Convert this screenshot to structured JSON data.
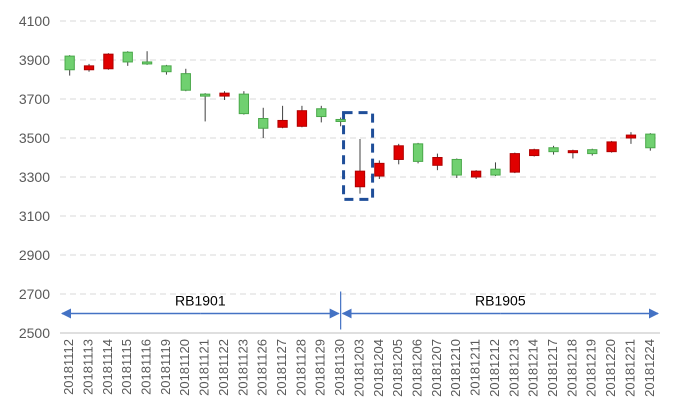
{
  "colors": {
    "up": "#70d070",
    "up_stroke": "#4aa84a",
    "down": "#e00000",
    "down_stroke": "#b00000",
    "wick": "#404040",
    "arrow": "#4472c4",
    "highlight": "#1f4e99",
    "grid": "#d9d9d9"
  },
  "chart_data": {
    "type": "candlestick",
    "y_ticks": [
      "2500",
      "2700",
      "2900",
      "3100",
      "3300",
      "3500",
      "3700",
      "3900",
      "4100"
    ],
    "ylim": [
      2500,
      4100
    ],
    "grid": true,
    "dates": [
      "20181112",
      "20181113",
      "20181114",
      "20181115",
      "20181116",
      "20181119",
      "20181120",
      "20181121",
      "20181122",
      "20181123",
      "20181126",
      "20181127",
      "20181128",
      "20181129",
      "20181130",
      "20181203",
      "20181204",
      "20181205",
      "20181206",
      "20181207",
      "20181210",
      "20181211",
      "20181212",
      "20181213",
      "20181214",
      "20181217",
      "20181218",
      "20181219",
      "20181220",
      "20181221",
      "20181224"
    ],
    "candles": [
      {
        "open": 3850,
        "close": 3920,
        "high": 3925,
        "low": 3820
      },
      {
        "open": 3870,
        "close": 3850,
        "high": 3880,
        "low": 3840
      },
      {
        "open": 3930,
        "close": 3855,
        "high": 3935,
        "low": 3850
      },
      {
        "open": 3890,
        "close": 3940,
        "high": 3945,
        "low": 3870
      },
      {
        "open": 3880,
        "close": 3890,
        "high": 3945,
        "low": 3875
      },
      {
        "open": 3840,
        "close": 3870,
        "high": 3875,
        "low": 3825
      },
      {
        "open": 3745,
        "close": 3830,
        "high": 3855,
        "low": 3740
      },
      {
        "open": 3720,
        "close": 3725,
        "high": 3730,
        "low": 3585
      },
      {
        "open": 3730,
        "close": 3715,
        "high": 3740,
        "low": 3695
      },
      {
        "open": 3625,
        "close": 3725,
        "high": 3740,
        "low": 3620
      },
      {
        "open": 3550,
        "close": 3600,
        "high": 3655,
        "low": 3500
      },
      {
        "open": 3590,
        "close": 3555,
        "high": 3665,
        "low": 3550
      },
      {
        "open": 3640,
        "close": 3560,
        "high": 3665,
        "low": 3555
      },
      {
        "open": 3610,
        "close": 3650,
        "high": 3665,
        "low": 3580
      },
      {
        "open": 3585,
        "close": 3595,
        "high": 3605,
        "low": 3560
      },
      {
        "open": 3330,
        "close": 3250,
        "high": 3495,
        "low": 3215
      },
      {
        "open": 3370,
        "close": 3305,
        "high": 3385,
        "low": 3290
      },
      {
        "open": 3460,
        "close": 3390,
        "high": 3470,
        "low": 3365
      },
      {
        "open": 3380,
        "close": 3470,
        "high": 3475,
        "low": 3370
      },
      {
        "open": 3400,
        "close": 3360,
        "high": 3420,
        "low": 3335
      },
      {
        "open": 3310,
        "close": 3390,
        "high": 3395,
        "low": 3295
      },
      {
        "open": 3330,
        "close": 3300,
        "high": 3335,
        "low": 3290
      },
      {
        "open": 3310,
        "close": 3340,
        "high": 3375,
        "low": 3305
      },
      {
        "open": 3420,
        "close": 3325,
        "high": 3425,
        "low": 3320
      },
      {
        "open": 3440,
        "close": 3410,
        "high": 3445,
        "low": 3405
      },
      {
        "open": 3430,
        "close": 3450,
        "high": 3460,
        "low": 3415
      },
      {
        "open": 3435,
        "close": 3425,
        "high": 3440,
        "low": 3395
      },
      {
        "open": 3420,
        "close": 3440,
        "high": 3445,
        "low": 3410
      },
      {
        "open": 3480,
        "close": 3430,
        "high": 3485,
        "low": 3425
      },
      {
        "open": 3515,
        "close": 3500,
        "high": 3530,
        "low": 3470
      },
      {
        "open": 3450,
        "close": 3520,
        "high": 3525,
        "low": 3435
      }
    ],
    "contracts": [
      {
        "label": "RB1901",
        "from_index": 0,
        "to_index": 14
      },
      {
        "label": "RB1905",
        "from_index": 14,
        "to_index": 30
      }
    ],
    "contract_arrow_level": 2600,
    "highlight_box": {
      "from_index": 15,
      "to_index": 15,
      "y_low": 3185,
      "y_high": 3630
    }
  }
}
